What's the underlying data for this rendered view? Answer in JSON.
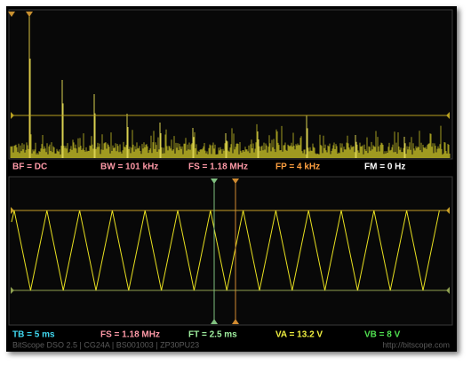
{
  "spectrum_panel": {
    "labels": [
      "BF = DC",
      "BW = 101 kHz",
      "FS = 1.18 MHz",
      "FP = 4 kHz",
      "FM = 0 Hz"
    ]
  },
  "scope_panel": {
    "labels": [
      "TB = 5 ms",
      "FS = 1.18 MHz",
      "FT = 2.5 ms",
      "VA = 13.2 V",
      "VB = 8 V"
    ]
  },
  "footer": {
    "left": "BitScope DSO 2.5 | CG24A | BS001003 | ZP30PU23",
    "right": "http://bitscope.com"
  }
}
